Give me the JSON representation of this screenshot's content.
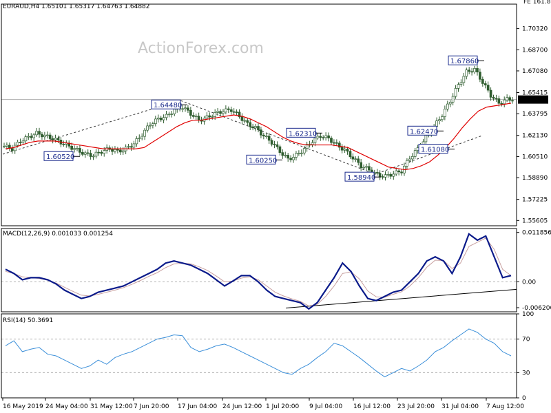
{
  "header": {
    "symbol_line": "EURAUD,H4  1.65101 1.65317 1.64763 1.64882",
    "top_right": "FE 161.8"
  },
  "watermark": "ActionForex.com",
  "colors": {
    "candle": "#2f5d2f",
    "ma": "#e00000",
    "macd": "#0a1a8a",
    "signal": "#c8a0a0",
    "rsi": "#3b8fd9",
    "grid": "#b0b0b0",
    "label_border": "#1a2a8c",
    "current_price_bg": "#000000"
  },
  "chart_data": [
    {
      "type": "candlestick",
      "name": "price",
      "ylim": [
        1.552,
        1.722
      ],
      "y_ticks": [
        "1.70320",
        "1.68700",
        "1.67080",
        "1.65415",
        "1.63795",
        "1.62130",
        "1.60510",
        "1.58890",
        "1.57225",
        "1.55605"
      ],
      "current_price": "1.64882",
      "current_price_value": 1.64882,
      "x_ticks": [
        "16 May 2019",
        "24 May 04:00",
        "31 May 12:00",
        "7 Jun 20:00",
        "17 Jun 04:00",
        "24 Jun 12:00",
        "1 Jul 20:00",
        "9 Jul 04:00",
        "16 Jul 12:00",
        "23 Jul 20:00",
        "31 Jul 04:00",
        "7 Aug 12:00"
      ],
      "close_path": [
        1.613,
        1.611,
        1.617,
        1.62,
        1.623,
        1.621,
        1.619,
        1.616,
        1.613,
        1.61,
        1.607,
        1.606,
        1.609,
        1.611,
        1.609,
        1.611,
        1.615,
        1.622,
        1.63,
        1.634,
        1.636,
        1.641,
        1.643,
        1.638,
        1.633,
        1.635,
        1.638,
        1.64,
        1.641,
        1.636,
        1.63,
        1.627,
        1.621,
        1.616,
        1.609,
        1.603,
        1.606,
        1.611,
        1.617,
        1.621,
        1.619,
        1.614,
        1.61,
        1.604,
        1.598,
        1.595,
        1.591,
        1.59,
        1.592,
        1.594,
        1.604,
        1.611,
        1.62,
        1.628,
        1.637,
        1.648,
        1.66,
        1.67,
        1.672,
        1.662,
        1.652,
        1.646,
        1.649
      ],
      "ma_path": [
        1.611,
        1.612,
        1.614,
        1.616,
        1.617,
        1.617,
        1.617,
        1.616,
        1.615,
        1.614,
        1.613,
        1.612,
        1.611,
        1.611,
        1.611,
        1.611,
        1.611,
        1.612,
        1.616,
        1.62,
        1.624,
        1.628,
        1.631,
        1.633,
        1.633,
        1.634,
        1.635,
        1.636,
        1.637,
        1.636,
        1.634,
        1.631,
        1.628,
        1.624,
        1.62,
        1.617,
        1.615,
        1.614,
        1.614,
        1.614,
        1.614,
        1.613,
        1.612,
        1.609,
        1.606,
        1.603,
        1.6,
        1.597,
        1.596,
        1.595,
        1.596,
        1.598,
        1.601,
        1.606,
        1.612,
        1.619,
        1.627,
        1.634,
        1.64,
        1.643,
        1.644,
        1.645,
        1.646
      ],
      "annotations": [
        {
          "text": "1.64480",
          "x": 262,
          "y": 1.6448,
          "anchor": "right"
        },
        {
          "text": "1.62310",
          "x": 458,
          "y": 1.6231,
          "anchor": "right"
        },
        {
          "text": "1.60520",
          "x": 106,
          "y": 1.6052,
          "anchor": "right"
        },
        {
          "text": "1.60250",
          "x": 400,
          "y": 1.6025,
          "anchor": "right"
        },
        {
          "text": "1.58940",
          "x": 543,
          "y": 1.5894,
          "anchor": "right"
        },
        {
          "text": "1.62470",
          "x": 634,
          "y": 1.6247,
          "anchor": "right"
        },
        {
          "text": "1.61080",
          "x": 650,
          "y": 1.6108,
          "anchor": "right"
        },
        {
          "text": "1.67860",
          "x": 693,
          "y": 1.6786,
          "anchor": "right"
        }
      ]
    },
    {
      "type": "line",
      "name": "MACD(12,26,9) 0.001033 0.001254",
      "y_ticks": [
        "0.011856",
        "0.00",
        "-0.006206"
      ],
      "ylim": [
        -0.0072,
        0.0128
      ],
      "macd": [
        0.003,
        0.002,
        0.0005,
        0.001,
        0.001,
        0.0005,
        -0.0005,
        -0.002,
        -0.003,
        -0.004,
        -0.0035,
        -0.0025,
        -0.002,
        -0.0015,
        -0.001,
        0.0,
        0.001,
        0.002,
        0.003,
        0.0045,
        0.005,
        0.0045,
        0.004,
        0.003,
        0.002,
        0.0005,
        -0.001,
        0.0002,
        0.0015,
        0.0015,
        0.0,
        -0.002,
        -0.0035,
        -0.004,
        -0.0045,
        -0.005,
        -0.0065,
        -0.005,
        -0.002,
        0.001,
        0.0045,
        0.0025,
        -0.001,
        -0.004,
        -0.0045,
        -0.0035,
        -0.0025,
        -0.002,
        0.0,
        0.002,
        0.005,
        0.006,
        0.005,
        0.002,
        0.006,
        0.0115,
        0.01,
        0.011,
        0.006,
        0.001,
        0.0015
      ],
      "signal": [
        0.0025,
        0.002,
        0.0012,
        0.001,
        0.0008,
        0.0004,
        -0.0003,
        -0.0013,
        -0.0023,
        -0.0032,
        -0.0034,
        -0.003,
        -0.0025,
        -0.002,
        -0.0014,
        -0.0006,
        0.0003,
        0.0013,
        0.0022,
        0.0034,
        0.0043,
        0.0045,
        0.0043,
        0.0036,
        0.0027,
        0.0014,
        0.0,
        0.0002,
        0.0009,
        0.0012,
        0.0005,
        -0.001,
        -0.0025,
        -0.0034,
        -0.0041,
        -0.0047,
        -0.0058,
        -0.0054,
        -0.0035,
        -0.001,
        0.002,
        0.0024,
        0.0007,
        -0.0022,
        -0.0036,
        -0.0037,
        -0.003,
        -0.0024,
        -0.001,
        0.001,
        0.0035,
        0.0052,
        0.0051,
        0.0032,
        0.0045,
        0.0085,
        0.0095,
        0.0105,
        0.0078,
        0.003,
        0.0015
      ],
      "trendline_from": -0.0063,
      "trendline_to": -0.0018
    },
    {
      "type": "line",
      "name": "RSI(14) 50.3691",
      "y_ticks": [
        "100",
        "70",
        "30",
        "0"
      ],
      "ylim": [
        0,
        100
      ],
      "levels": [
        70,
        30
      ],
      "values": [
        62,
        68,
        55,
        58,
        60,
        52,
        50,
        45,
        40,
        35,
        38,
        45,
        40,
        48,
        52,
        55,
        60,
        65,
        70,
        72,
        75,
        74,
        60,
        55,
        58,
        62,
        64,
        60,
        55,
        50,
        45,
        40,
        35,
        30,
        28,
        35,
        40,
        48,
        55,
        65,
        62,
        55,
        48,
        40,
        32,
        25,
        30,
        35,
        32,
        38,
        45,
        55,
        60,
        68,
        75,
        82,
        78,
        70,
        65,
        55,
        50
      ],
      "current": 50.37
    }
  ]
}
